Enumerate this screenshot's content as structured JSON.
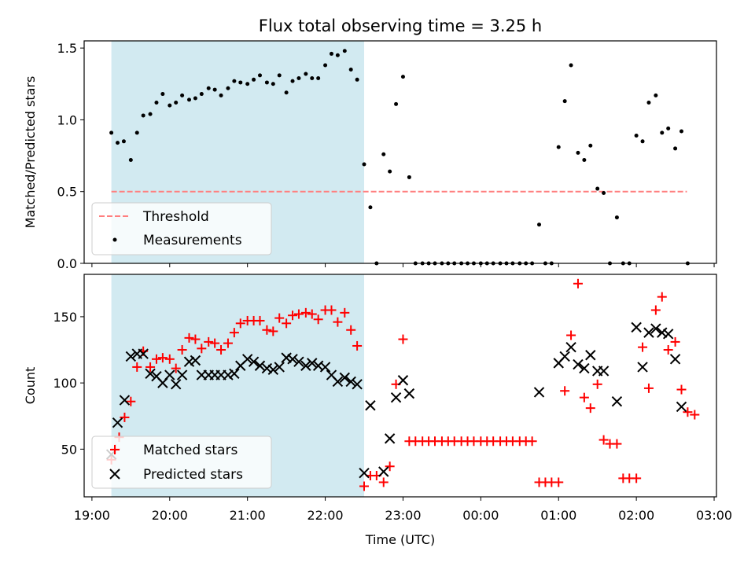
{
  "title": "Flux total observing time = 3.25 h",
  "xlabel": "Time (UTC)",
  "x_ticks": [
    "19:00",
    "20:00",
    "21:00",
    "22:00",
    "23:00",
    "00:00",
    "01:00",
    "02:00",
    "03:00"
  ],
  "colors": {
    "shade": "#add8e6",
    "threshold": "#ff7f7f",
    "measurements": "#000000",
    "matched": "#ff0000",
    "predicted": "#000000"
  },
  "chart_data": [
    {
      "type": "scatter",
      "ylabel": "Matched/Predicted stars",
      "x_unit": "hours after 19:00 UTC",
      "xlim": [
        -0.1,
        8.03
      ],
      "ylim": [
        0,
        1.55
      ],
      "yticks": [
        0,
        0.5,
        1.0,
        1.5
      ],
      "ytick_labels": [
        "0.0",
        "0.5",
        "1.0",
        "1.5"
      ],
      "shaded_region": [
        0.25,
        3.5
      ],
      "legend": {
        "position": "lower-left",
        "entries": [
          "Threshold",
          "Measurements"
        ]
      },
      "threshold": {
        "name": "Threshold",
        "value": 0.5,
        "x_range": [
          0.25,
          7.65
        ]
      },
      "series": [
        {
          "name": "Measurements",
          "points": [
            [
              0.25,
              0.91
            ],
            [
              0.33,
              0.84
            ],
            [
              0.41,
              0.85
            ],
            [
              0.5,
              0.72
            ],
            [
              0.58,
              0.91
            ],
            [
              0.66,
              1.03
            ],
            [
              0.75,
              1.04
            ],
            [
              0.83,
              1.12
            ],
            [
              0.91,
              1.18
            ],
            [
              1.0,
              1.1
            ],
            [
              1.08,
              1.12
            ],
            [
              1.16,
              1.17
            ],
            [
              1.25,
              1.14
            ],
            [
              1.33,
              1.15
            ],
            [
              1.41,
              1.18
            ],
            [
              1.5,
              1.22
            ],
            [
              1.58,
              1.21
            ],
            [
              1.66,
              1.17
            ],
            [
              1.75,
              1.22
            ],
            [
              1.83,
              1.27
            ],
            [
              1.91,
              1.26
            ],
            [
              2.0,
              1.25
            ],
            [
              2.08,
              1.28
            ],
            [
              2.16,
              1.31
            ],
            [
              2.25,
              1.26
            ],
            [
              2.33,
              1.25
            ],
            [
              2.41,
              1.31
            ],
            [
              2.5,
              1.19
            ],
            [
              2.58,
              1.27
            ],
            [
              2.66,
              1.29
            ],
            [
              2.75,
              1.32
            ],
            [
              2.83,
              1.29
            ],
            [
              2.91,
              1.29
            ],
            [
              3.0,
              1.38
            ],
            [
              3.08,
              1.46
            ],
            [
              3.16,
              1.45
            ],
            [
              3.25,
              1.48
            ],
            [
              3.33,
              1.35
            ],
            [
              3.41,
              1.28
            ],
            [
              3.5,
              0.69
            ],
            [
              3.58,
              0.39
            ],
            [
              3.66,
              0
            ],
            [
              3.75,
              0.76
            ],
            [
              3.83,
              0.64
            ],
            [
              3.91,
              1.11
            ],
            [
              4.0,
              1.3
            ],
            [
              4.08,
              0.6
            ],
            [
              4.16,
              0
            ],
            [
              4.25,
              0
            ],
            [
              4.33,
              0
            ],
            [
              4.41,
              0
            ],
            [
              4.5,
              0
            ],
            [
              4.58,
              0
            ],
            [
              4.66,
              0
            ],
            [
              4.75,
              0
            ],
            [
              4.83,
              0
            ],
            [
              4.91,
              0
            ],
            [
              5.0,
              0
            ],
            [
              5.08,
              0
            ],
            [
              5.16,
              0
            ],
            [
              5.25,
              0
            ],
            [
              5.33,
              0
            ],
            [
              5.41,
              0
            ],
            [
              5.5,
              0
            ],
            [
              5.58,
              0
            ],
            [
              5.66,
              0
            ],
            [
              5.75,
              0.27
            ],
            [
              5.83,
              0
            ],
            [
              5.91,
              0
            ],
            [
              6.0,
              0.81
            ],
            [
              6.08,
              1.13
            ],
            [
              6.16,
              1.38
            ],
            [
              6.25,
              0.77
            ],
            [
              6.33,
              0.72
            ],
            [
              6.41,
              0.82
            ],
            [
              6.5,
              0.52
            ],
            [
              6.58,
              0.49
            ],
            [
              6.66,
              0
            ],
            [
              6.75,
              0.32
            ],
            [
              6.83,
              0
            ],
            [
              6.91,
              0
            ],
            [
              7.0,
              0.89
            ],
            [
              7.08,
              0.85
            ],
            [
              7.16,
              1.12
            ],
            [
              7.25,
              1.17
            ],
            [
              7.33,
              0.91
            ],
            [
              7.41,
              0.94
            ],
            [
              7.5,
              0.8
            ],
            [
              7.58,
              0.92
            ],
            [
              7.66,
              0
            ]
          ]
        }
      ]
    },
    {
      "type": "scatter",
      "ylabel": "Count",
      "x_unit": "hours after 19:00 UTC",
      "xlim": [
        -0.1,
        8.03
      ],
      "ylim": [
        14,
        182
      ],
      "yticks": [
        50,
        100,
        150
      ],
      "ytick_labels": [
        "50",
        "100",
        "150"
      ],
      "shaded_region": [
        0.25,
        3.5
      ],
      "legend": {
        "position": "lower-left",
        "entries": [
          "Matched stars",
          "Predicted stars"
        ]
      },
      "series": [
        {
          "name": "Matched stars",
          "marker": "+",
          "points": [
            [
              0.25,
              42
            ],
            [
              0.3,
              50
            ],
            [
              0.35,
              59
            ],
            [
              0.42,
              74
            ],
            [
              0.5,
              86
            ],
            [
              0.58,
              112
            ],
            [
              0.66,
              124
            ],
            [
              0.75,
              112
            ],
            [
              0.83,
              118
            ],
            [
              0.91,
              119
            ],
            [
              1.0,
              118
            ],
            [
              1.08,
              111
            ],
            [
              1.16,
              125
            ],
            [
              1.25,
              134
            ],
            [
              1.33,
              133
            ],
            [
              1.41,
              126
            ],
            [
              1.5,
              131
            ],
            [
              1.58,
              130
            ],
            [
              1.66,
              125
            ],
            [
              1.75,
              130
            ],
            [
              1.83,
              138
            ],
            [
              1.91,
              145
            ],
            [
              2.0,
              147
            ],
            [
              2.08,
              147
            ],
            [
              2.16,
              147
            ],
            [
              2.25,
              140
            ],
            [
              2.33,
              139
            ],
            [
              2.41,
              149
            ],
            [
              2.5,
              145
            ],
            [
              2.58,
              151
            ],
            [
              2.66,
              152
            ],
            [
              2.75,
              153
            ],
            [
              2.83,
              152
            ],
            [
              2.91,
              148
            ],
            [
              3.0,
              155
            ],
            [
              3.08,
              155
            ],
            [
              3.16,
              146
            ],
            [
              3.25,
              153
            ],
            [
              3.33,
              140
            ],
            [
              3.41,
              128
            ],
            [
              3.5,
              22
            ],
            [
              3.58,
              30
            ],
            [
              3.66,
              30
            ],
            [
              3.75,
              25
            ],
            [
              3.83,
              37
            ],
            [
              3.91,
              99
            ],
            [
              4.0,
              133
            ],
            [
              4.08,
              56
            ],
            [
              4.16,
              56
            ],
            [
              4.25,
              56
            ],
            [
              4.33,
              56
            ],
            [
              4.41,
              56
            ],
            [
              4.5,
              56
            ],
            [
              4.58,
              56
            ],
            [
              4.66,
              56
            ],
            [
              4.75,
              56
            ],
            [
              4.83,
              56
            ],
            [
              4.91,
              56
            ],
            [
              5.0,
              56
            ],
            [
              5.08,
              56
            ],
            [
              5.16,
              56
            ],
            [
              5.25,
              56
            ],
            [
              5.33,
              56
            ],
            [
              5.41,
              56
            ],
            [
              5.5,
              56
            ],
            [
              5.58,
              56
            ],
            [
              5.66,
              56
            ],
            [
              5.75,
              25
            ],
            [
              5.83,
              25
            ],
            [
              5.91,
              25
            ],
            [
              6.0,
              25
            ],
            [
              6.08,
              94
            ],
            [
              6.16,
              136
            ],
            [
              6.25,
              175
            ],
            [
              6.33,
              89
            ],
            [
              6.41,
              81
            ],
            [
              6.5,
              99
            ],
            [
              6.58,
              57
            ],
            [
              6.66,
              54
            ],
            [
              6.75,
              54
            ],
            [
              6.83,
              28
            ],
            [
              6.91,
              28
            ],
            [
              7.0,
              28
            ],
            [
              7.08,
              127
            ],
            [
              7.16,
              96
            ],
            [
              7.25,
              155
            ],
            [
              7.33,
              165
            ],
            [
              7.41,
              125
            ],
            [
              7.5,
              131
            ],
            [
              7.58,
              95
            ],
            [
              7.66,
              78
            ],
            [
              7.75,
              76
            ]
          ]
        },
        {
          "name": "Predicted stars",
          "marker": "x",
          "points": [
            [
              0.25,
              46
            ],
            [
              0.33,
              70
            ],
            [
              0.42,
              87
            ],
            [
              0.5,
              120
            ],
            [
              0.58,
              122
            ],
            [
              0.66,
              122
            ],
            [
              0.75,
              107
            ],
            [
              0.83,
              105
            ],
            [
              0.91,
              100
            ],
            [
              1.0,
              106
            ],
            [
              1.08,
              99
            ],
            [
              1.16,
              106
            ],
            [
              1.25,
              116
            ],
            [
              1.33,
              117
            ],
            [
              1.41,
              106
            ],
            [
              1.5,
              106
            ],
            [
              1.58,
              106
            ],
            [
              1.66,
              106
            ],
            [
              1.75,
              106
            ],
            [
              1.83,
              107
            ],
            [
              1.91,
              113
            ],
            [
              2.0,
              118
            ],
            [
              2.08,
              116
            ],
            [
              2.16,
              113
            ],
            [
              2.25,
              111
            ],
            [
              2.33,
              110
            ],
            [
              2.41,
              112
            ],
            [
              2.5,
              119
            ],
            [
              2.58,
              118
            ],
            [
              2.66,
              116
            ],
            [
              2.75,
              113
            ],
            [
              2.83,
              115
            ],
            [
              2.91,
              113
            ],
            [
              3.0,
              112
            ],
            [
              3.08,
              106
            ],
            [
              3.16,
              101
            ],
            [
              3.25,
              104
            ],
            [
              3.33,
              101
            ],
            [
              3.41,
              99
            ],
            [
              3.5,
              32
            ],
            [
              3.58,
              83
            ],
            [
              3.75,
              33
            ],
            [
              3.83,
              58
            ],
            [
              3.91,
              89
            ],
            [
              4.0,
              102
            ],
            [
              4.08,
              92
            ],
            [
              5.75,
              93
            ],
            [
              6.0,
              115
            ],
            [
              6.08,
              120
            ],
            [
              6.16,
              127
            ],
            [
              6.25,
              114
            ],
            [
              6.33,
              111
            ],
            [
              6.41,
              121
            ],
            [
              6.5,
              109
            ],
            [
              6.58,
              109
            ],
            [
              6.75,
              86
            ],
            [
              7.0,
              142
            ],
            [
              7.08,
              112
            ],
            [
              7.16,
              138
            ],
            [
              7.25,
              141
            ],
            [
              7.33,
              138
            ],
            [
              7.41,
              137
            ],
            [
              7.5,
              118
            ],
            [
              7.58,
              82
            ]
          ]
        }
      ]
    }
  ]
}
